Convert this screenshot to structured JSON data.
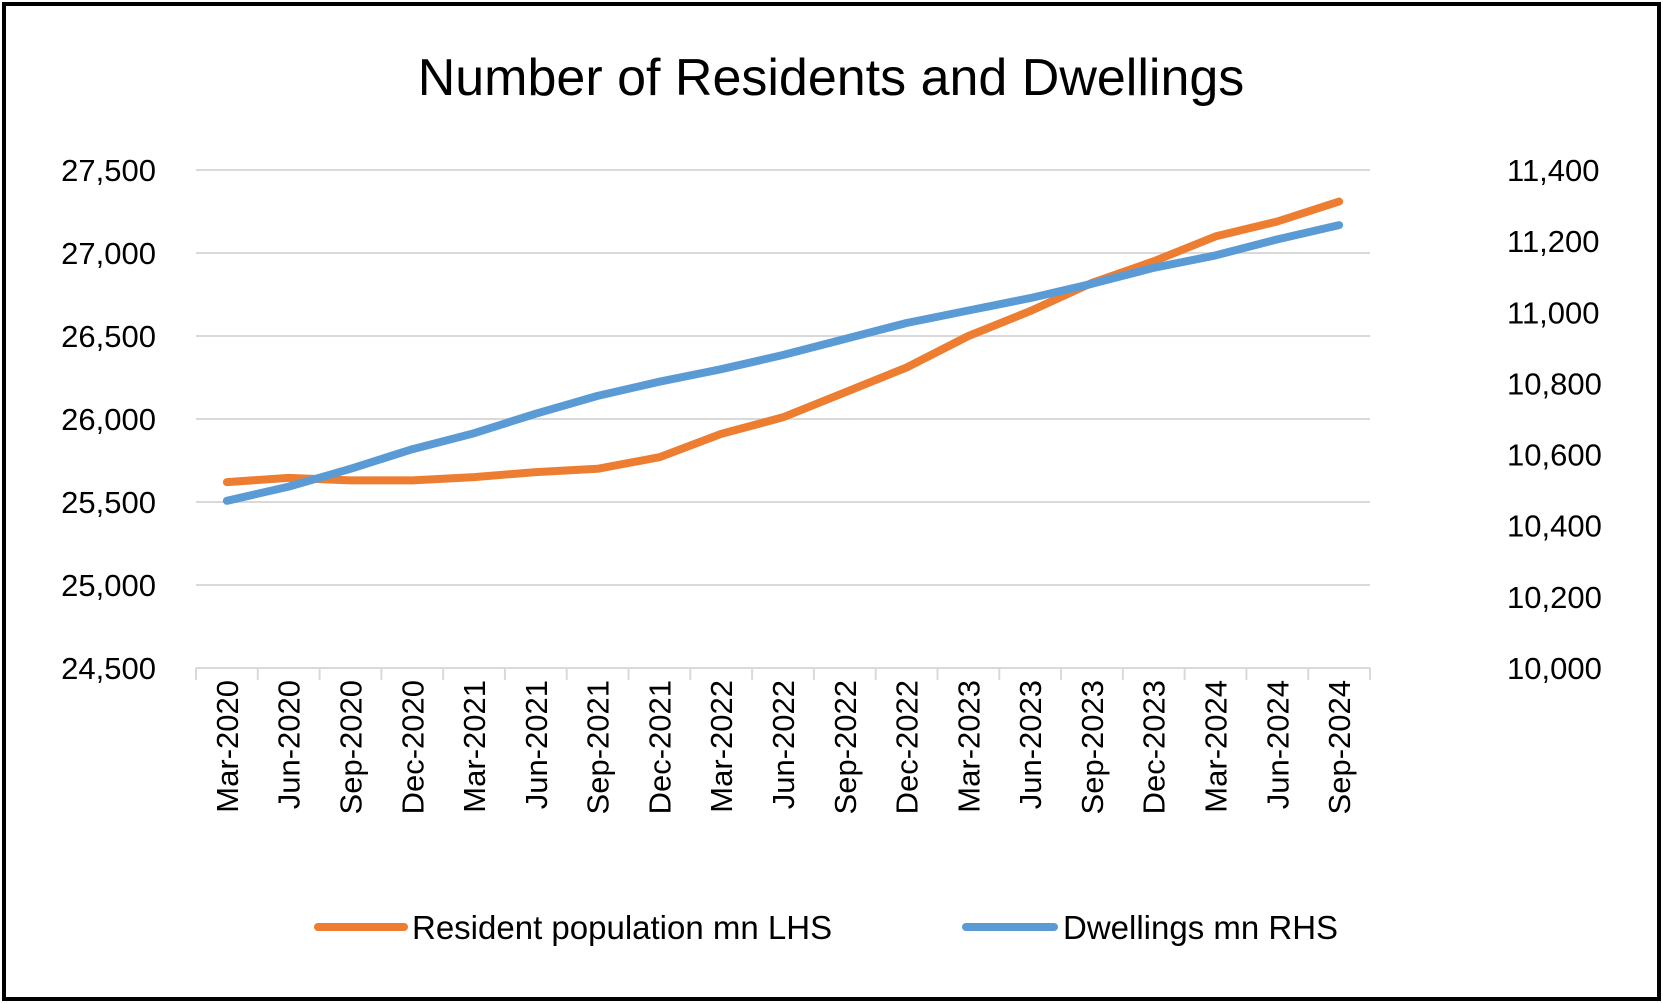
{
  "chart_data": {
    "type": "line",
    "title": "Number of Residents and Dwellings",
    "categories": [
      "Mar-2020",
      "Jun-2020",
      "Sep-2020",
      "Dec-2020",
      "Mar-2021",
      "Jun-2021",
      "Sep-2021",
      "Dec-2021",
      "Mar-2022",
      "Jun-2022",
      "Sep-2022",
      "Dec-2022",
      "Mar-2023",
      "Jun-2023",
      "Sep-2023",
      "Dec-2023",
      "Mar-2024",
      "Jun-2024",
      "Sep-2024"
    ],
    "y_left": {
      "min": 24500,
      "max": 27500,
      "ticks": [
        24500,
        25000,
        25500,
        26000,
        26500,
        27000,
        27500
      ],
      "tick_labels": [
        "24,500",
        "25,000",
        "25,500",
        "26,000",
        "26,500",
        "27,000",
        "27,500"
      ]
    },
    "y_right": {
      "min": 10000,
      "max": 11400,
      "ticks": [
        10000,
        10200,
        10400,
        10600,
        10800,
        11000,
        11200,
        11400
      ],
      "tick_labels": [
        "10,000",
        "10,200",
        "10,400",
        "10,600",
        "10,800",
        "11,000",
        "11,200",
        "11,400"
      ]
    },
    "grid": true,
    "legend_position": "bottom",
    "series": [
      {
        "name": "Resident population mn LHS",
        "axis": "left",
        "color": "#ED7D31",
        "values": [
          25620,
          25645,
          25630,
          25630,
          25650,
          25680,
          25700,
          25770,
          25910,
          26010,
          26160,
          26310,
          26500,
          26650,
          26820,
          26950,
          27100,
          27190,
          27310
        ]
      },
      {
        "name": "Dwellings mn RHS",
        "axis": "right",
        "color": "#5B9BD5",
        "values": [
          10470,
          10510,
          10560,
          10615,
          10660,
          10715,
          10765,
          10805,
          10840,
          10880,
          10925,
          10970,
          11005,
          11040,
          11080,
          11125,
          11160,
          11205,
          11245
        ]
      }
    ]
  }
}
